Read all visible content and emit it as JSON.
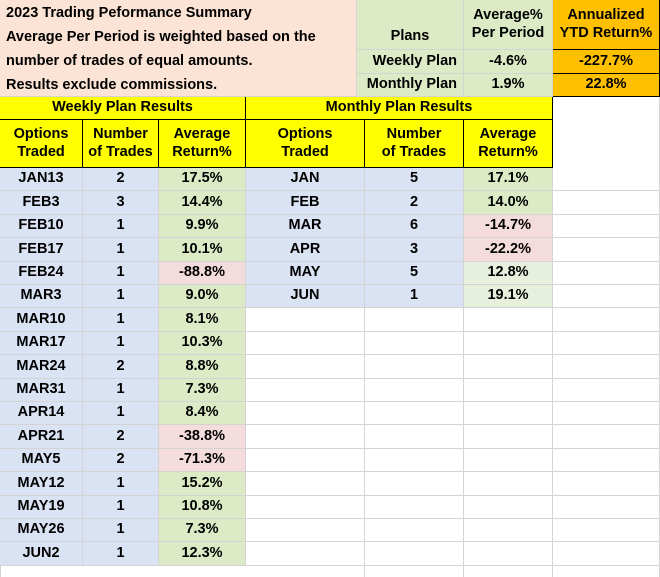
{
  "summary": {
    "lines": [
      "2023 Trading Peformance Summary",
      "Average Per Period is weighted based on the",
      "number of trades of equal amounts.",
      "Results exclude commissions."
    ]
  },
  "plans_table": {
    "header_plans": "Plans",
    "header_avg": "Average%\nPer Period",
    "header_ytd": "Annualized\nYTD Return%",
    "rows": [
      {
        "plan": "Weekly Plan",
        "avg": "-4.6%",
        "ytd": "-227.7%"
      },
      {
        "plan": "Monthly Plan",
        "avg": "1.9%",
        "ytd": "22.8%"
      }
    ]
  },
  "weekly": {
    "title": "Weekly Plan Results",
    "col1": "Options\nTraded",
    "col2": "Number\nof Trades",
    "col3": "Average\nReturn%",
    "rows": [
      {
        "option": "JAN13",
        "trades": "2",
        "ret": "17.5%",
        "neg": false
      },
      {
        "option": "FEB3",
        "trades": "3",
        "ret": "14.4%",
        "neg": false
      },
      {
        "option": "FEB10",
        "trades": "1",
        "ret": "9.9%",
        "neg": false
      },
      {
        "option": "FEB17",
        "trades": "1",
        "ret": "10.1%",
        "neg": false
      },
      {
        "option": "FEB24",
        "trades": "1",
        "ret": "-88.8%",
        "neg": true
      },
      {
        "option": "MAR3",
        "trades": "1",
        "ret": "9.0%",
        "neg": false
      },
      {
        "option": "MAR10",
        "trades": "1",
        "ret": "8.1%",
        "neg": false
      },
      {
        "option": "MAR17",
        "trades": "1",
        "ret": "10.3%",
        "neg": false
      },
      {
        "option": "MAR24",
        "trades": "2",
        "ret": "8.8%",
        "neg": false
      },
      {
        "option": "MAR31",
        "trades": "1",
        "ret": "7.3%",
        "neg": false
      },
      {
        "option": "APR14",
        "trades": "1",
        "ret": "8.4%",
        "neg": false
      },
      {
        "option": "APR21",
        "trades": "2",
        "ret": "-38.8%",
        "neg": true
      },
      {
        "option": "MAY5",
        "trades": "2",
        "ret": "-71.3%",
        "neg": true
      },
      {
        "option": "MAY12",
        "trades": "1",
        "ret": "15.2%",
        "neg": false
      },
      {
        "option": "MAY19",
        "trades": "1",
        "ret": "10.8%",
        "neg": false
      },
      {
        "option": "MAY26",
        "trades": "1",
        "ret": "7.3%",
        "neg": false
      },
      {
        "option": "JUN2",
        "trades": "1",
        "ret": "12.3%",
        "neg": false
      }
    ]
  },
  "monthly": {
    "title": "Monthly Plan Results",
    "col1": "Options\nTraded",
    "col2": "Number\nof Trades",
    "col3": "Average\nReturn%",
    "rows": [
      {
        "option": "JAN",
        "trades": "5",
        "ret": "17.1%",
        "neg": false
      },
      {
        "option": "FEB",
        "trades": "2",
        "ret": "14.0%",
        "neg": false
      },
      {
        "option": "MAR",
        "trades": "6",
        "ret": "-14.7%",
        "neg": true
      },
      {
        "option": "APR",
        "trades": "3",
        "ret": "-22.2%",
        "neg": true
      },
      {
        "option": "MAY",
        "trades": "5",
        "ret": "12.8%",
        "neg": false
      },
      {
        "option": "JUN",
        "trades": "1",
        "ret": "19.1%",
        "neg": false
      }
    ]
  },
  "colors": {
    "peach": "#fbe4d5",
    "blue": "#dae3f3",
    "green": "#dcebc6",
    "yellow": "#ffff00",
    "orange": "#ffc000",
    "pink": "#f4dcdc"
  }
}
